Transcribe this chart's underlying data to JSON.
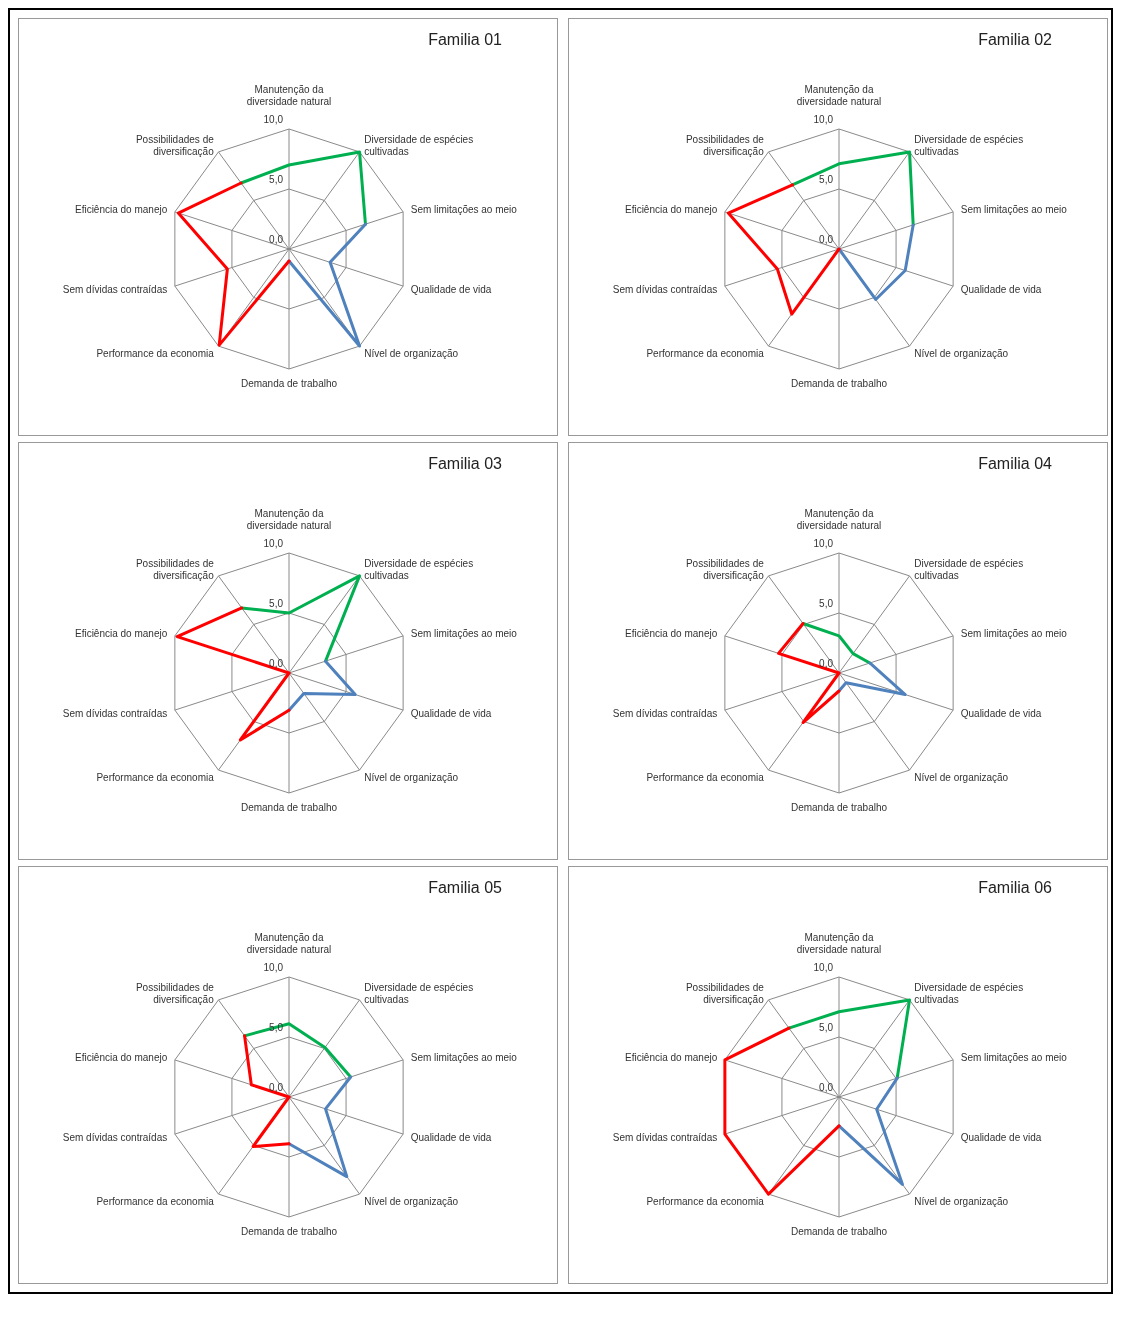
{
  "chart_data": [
    {
      "type": "radar",
      "title": "Familia 01",
      "categories": [
        "Manutenção da diversidade natural",
        "Diversidade de espécies cultivadas",
        "Sem limitações ao meio",
        "Qualidade de vida",
        "Nível de organização",
        "Demanda de trabalho",
        "Performance da economia",
        "Sem dívidas contraídas",
        "Eficiência do manejo",
        "Possibilidades de diversificação"
      ],
      "ylim": [
        0,
        10
      ],
      "yticks": [
        {
          "value": 0,
          "label": "0,0"
        },
        {
          "value": 5,
          "label": "5,0"
        },
        {
          "value": 10,
          "label": "10,0"
        }
      ],
      "grid": true,
      "series": [
        {
          "color": "#00b050",
          "values": [
            7.0,
            10,
            6.7,
            null,
            null,
            null,
            null,
            null,
            null,
            6.8
          ]
        },
        {
          "color": "#4f81bd",
          "values": [
            null,
            null,
            6.7,
            3.6,
            10,
            1.0,
            null,
            null,
            null,
            null
          ]
        },
        {
          "color": "#ff0000",
          "values": [
            null,
            null,
            null,
            null,
            null,
            1.0,
            9.9,
            5.4,
            9.7,
            6.8
          ]
        }
      ]
    },
    {
      "type": "radar",
      "title": "Familia 02",
      "categories": [
        "Manutenção da diversidade natural",
        "Diversidade de espécies cultivadas",
        "Sem limitações ao meio",
        "Qualidade de vida",
        "Nível de organização",
        "Demanda de trabalho",
        "Performance da economia",
        "Sem dívidas contraídas",
        "Eficiência do manejo",
        "Possibilidades de diversificação"
      ],
      "ylim": [
        0,
        10
      ],
      "yticks": [
        {
          "value": 0,
          "label": "0,0"
        },
        {
          "value": 5,
          "label": "5,0"
        },
        {
          "value": 10,
          "label": "10,0"
        }
      ],
      "grid": true,
      "series": [
        {
          "color": "#00b050",
          "values": [
            7.1,
            10,
            6.5,
            null,
            null,
            null,
            null,
            null,
            null,
            6.6
          ]
        },
        {
          "color": "#4f81bd",
          "values": [
            null,
            null,
            6.5,
            5.8,
            5.2,
            0,
            null,
            null,
            null,
            null
          ]
        },
        {
          "color": "#ff0000",
          "values": [
            null,
            null,
            null,
            null,
            null,
            0,
            6.7,
            5.4,
            9.7,
            6.6
          ]
        }
      ]
    },
    {
      "type": "radar",
      "title": "Familia 03",
      "categories": [
        "Manutenção da diversidade natural",
        "Diversidade de espécies cultivadas",
        "Sem limitações ao meio",
        "Qualidade de vida",
        "Nível de organização",
        "Demanda de trabalho",
        "Performance da economia",
        "Sem dívidas contraídas",
        "Eficiência do manejo",
        "Possibilidades de diversificação"
      ],
      "ylim": [
        0,
        10
      ],
      "yticks": [
        {
          "value": 0,
          "label": "0,0"
        },
        {
          "value": 5,
          "label": "5,0"
        },
        {
          "value": 10,
          "label": "10,0"
        }
      ],
      "grid": true,
      "series": [
        {
          "color": "#00b050",
          "values": [
            5.0,
            10,
            3.2,
            null,
            null,
            null,
            null,
            null,
            null,
            6.7
          ]
        },
        {
          "color": "#4f81bd",
          "values": [
            null,
            null,
            3.2,
            5.8,
            2.1,
            3.1,
            null,
            null,
            null,
            null
          ]
        },
        {
          "color": "#ff0000",
          "values": [
            null,
            null,
            null,
            null,
            null,
            3.1,
            6.9,
            0,
            9.8,
            6.7
          ]
        }
      ]
    },
    {
      "type": "radar",
      "title": "Familia 04",
      "categories": [
        "Manutenção da diversidade natural",
        "Diversidade de espécies cultivadas",
        "Sem limitações ao meio",
        "Qualidade de vida",
        "Nível de organização",
        "Demanda de trabalho",
        "Performance da economia",
        "Sem dívidas contraídas",
        "Eficiência do manejo",
        "Possibilidades de diversificação"
      ],
      "ylim": [
        0,
        10
      ],
      "yticks": [
        {
          "value": 0,
          "label": "0,0"
        },
        {
          "value": 5,
          "label": "5,0"
        },
        {
          "value": 10,
          "label": "10,0"
        }
      ],
      "grid": true,
      "series": [
        {
          "color": "#00b050",
          "values": [
            3.1,
            2.0,
            2.7,
            null,
            null,
            null,
            null,
            null,
            null,
            5.1
          ]
        },
        {
          "color": "#4f81bd",
          "values": [
            null,
            null,
            2.7,
            5.8,
            1.0,
            1.5,
            null,
            null,
            null,
            null
          ]
        },
        {
          "color": "#ff0000",
          "values": [
            null,
            null,
            null,
            null,
            null,
            1.5,
            5.1,
            0,
            5.3,
            5.1
          ]
        }
      ]
    },
    {
      "type": "radar",
      "title": "Familia 05",
      "categories": [
        "Manutenção da diversidade natural",
        "Diversidade de espécies cultivadas",
        "Sem limitações ao meio",
        "Qualidade de vida",
        "Nível de organização",
        "Demanda de trabalho",
        "Performance da economia",
        "Sem dívidas contraídas",
        "Eficiência do manejo",
        "Possibilidades de diversificação"
      ],
      "ylim": [
        0,
        10
      ],
      "yticks": [
        {
          "value": 0,
          "label": "0,0"
        },
        {
          "value": 5,
          "label": "5,0"
        },
        {
          "value": 10,
          "label": "10,0"
        }
      ],
      "grid": true,
      "series": [
        {
          "color": "#00b050",
          "values": [
            6.1,
            5.1,
            5.4,
            null,
            null,
            null,
            null,
            null,
            null,
            6.3
          ]
        },
        {
          "color": "#4f81bd",
          "values": [
            null,
            null,
            5.4,
            3.2,
            8.2,
            3.9,
            null,
            null,
            null,
            null
          ]
        },
        {
          "color": "#ff0000",
          "values": [
            null,
            null,
            null,
            null,
            null,
            3.9,
            5.1,
            0,
            3.3,
            6.3
          ]
        }
      ]
    },
    {
      "type": "radar",
      "title": "Familia 06",
      "categories": [
        "Manutenção da diversidade natural",
        "Diversidade de espécies cultivadas",
        "Sem limitações ao meio",
        "Qualidade de vida",
        "Nível de organização",
        "Demanda de trabalho",
        "Performance da economia",
        "Sem dívidas contraídas",
        "Eficiência do manejo",
        "Possibilidades de diversificação"
      ],
      "ylim": [
        0,
        10
      ],
      "yticks": [
        {
          "value": 0,
          "label": "0,0"
        },
        {
          "value": 5,
          "label": "5,0"
        },
        {
          "value": 10,
          "label": "10,0"
        }
      ],
      "grid": true,
      "series": [
        {
          "color": "#00b050",
          "values": [
            7.1,
            10,
            5.1,
            null,
            null,
            null,
            null,
            null,
            null,
            7.1
          ]
        },
        {
          "color": "#4f81bd",
          "values": [
            null,
            null,
            5.1,
            3.3,
            9.0,
            2.4,
            null,
            null,
            null,
            null
          ]
        },
        {
          "color": "#ff0000",
          "values": [
            null,
            null,
            null,
            null,
            null,
            2.4,
            10,
            10,
            10,
            7.1
          ]
        }
      ]
    }
  ]
}
